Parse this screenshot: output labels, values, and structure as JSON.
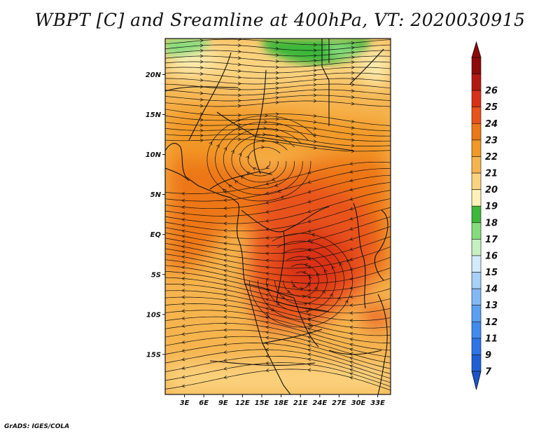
{
  "title": "WBPT [C] and Sreamline at 400hPa, VT: 2020030915",
  "credit": "GrADS: IGES/COLA",
  "map": {
    "lon_range": [
      0,
      35
    ],
    "lat_range": [
      -20,
      24.5
    ],
    "lon_ticks": [
      "3E",
      "6E",
      "9E",
      "12E",
      "15E",
      "18E",
      "21E",
      "24E",
      "27E",
      "30E",
      "33E"
    ],
    "lat_ticks": [
      "20N",
      "15N",
      "10N",
      "5N",
      "EQ",
      "5S",
      "10S",
      "15S"
    ]
  },
  "colorbar": {
    "labels": [
      "7",
      "9",
      "11",
      "12",
      "13",
      "14",
      "15",
      "16",
      "17",
      "18",
      "19",
      "20",
      "21",
      "22",
      "23",
      "24",
      "25",
      "26"
    ],
    "colors": [
      "#1f5fd6",
      "#2e74e8",
      "#3f8bf0",
      "#5aa0f2",
      "#82b9f5",
      "#a8d0f8",
      "#d2ebfb",
      "#c6f0c0",
      "#84dc7c",
      "#3cb83a",
      "#fcf2b8",
      "#fbd37f",
      "#f6b44e",
      "#f29826",
      "#ed7616",
      "#e8521b",
      "#d93018",
      "#b51712",
      "#8e0909"
    ],
    "under_color": "#1a56c9",
    "over_color": "#8e0909"
  }
}
